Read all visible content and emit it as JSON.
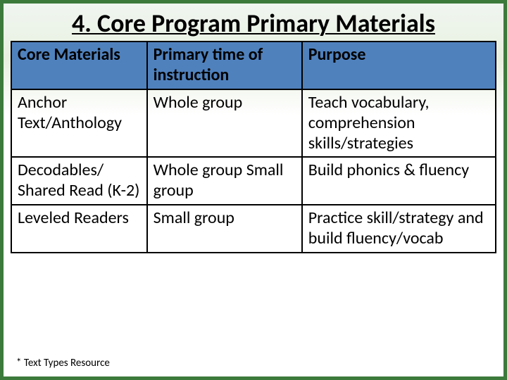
{
  "slide": {
    "title": "4. Core Program Primary Materials",
    "footnote": "* Text Types Resource"
  },
  "table": {
    "type": "table",
    "header_bg": "#4f81bd",
    "border_color": "#000000",
    "text_color": "#000000",
    "header_fontsize": 24,
    "cell_fontsize": 24,
    "columns": [
      {
        "label": "Core Materials",
        "width_pct": 28
      },
      {
        "label": "Primary time of instruction",
        "width_pct": 32
      },
      {
        "label": "Purpose",
        "width_pct": 40
      }
    ],
    "rows": [
      {
        "c0": "Anchor Text/Anthology",
        "c1": "Whole group",
        "c2": "Teach vocabulary, comprehension skills/strategies"
      },
      {
        "c0": "Decodables/ Shared Read (K-2)",
        "c1": "Whole group Small group",
        "c2": "Build phonics & fluency"
      },
      {
        "c0": "Leveled Readers",
        "c1": "Small group",
        "c2": "Practice skill/strategy and build fluency/vocab"
      }
    ]
  },
  "style": {
    "border_color": "#3c7a3c",
    "background_top": "#e8f0e0",
    "background_bottom": "#ffffff",
    "title_fontsize": 36,
    "footnote_fontsize": 15
  }
}
